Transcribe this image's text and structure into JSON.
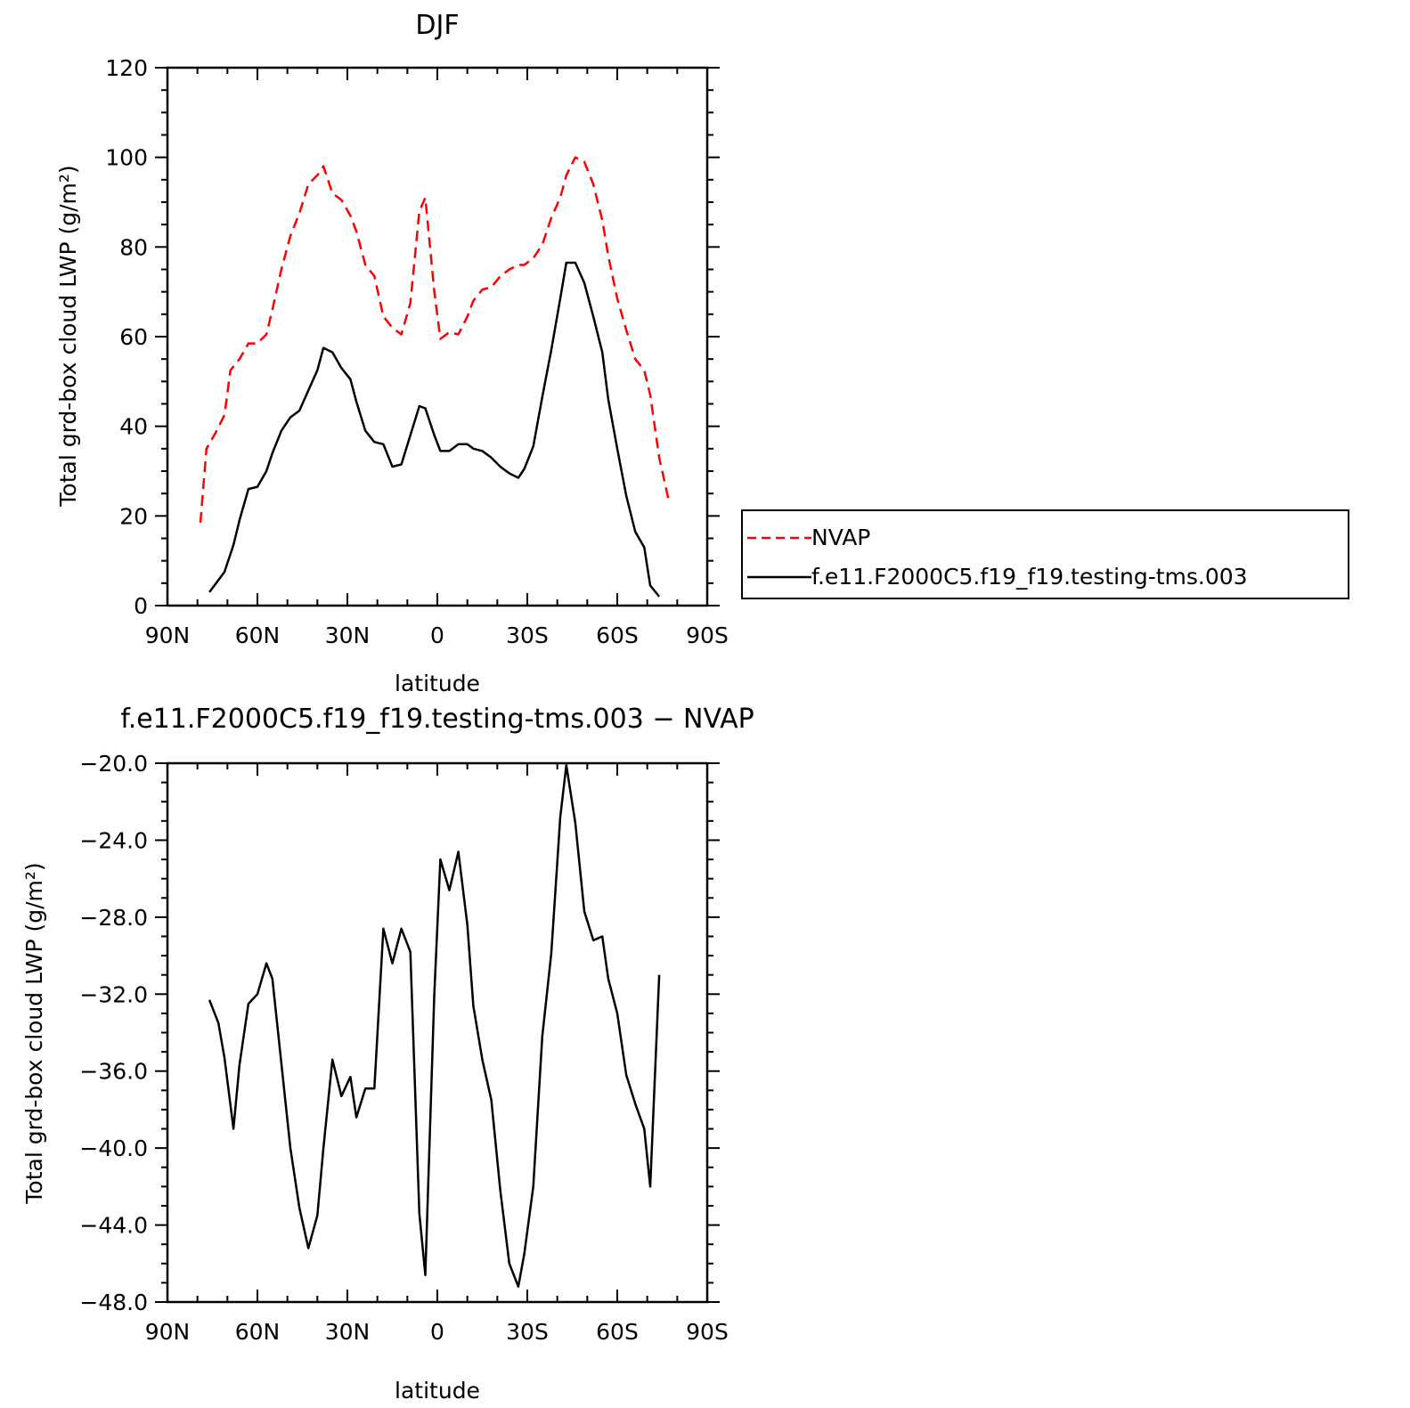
{
  "chart_data": [
    {
      "type": "line",
      "title": "DJF",
      "xlabel": "latitude",
      "ylabel": "Total grd-box cloud LWP (g/m²)",
      "xlim": [
        90,
        -90
      ],
      "ylim": [
        0,
        120
      ],
      "xticks": [
        {
          "value": 90,
          "label": "90N"
        },
        {
          "value": 60,
          "label": "60N"
        },
        {
          "value": 30,
          "label": "30N"
        },
        {
          "value": 0,
          "label": "0"
        },
        {
          "value": -30,
          "label": "30S"
        },
        {
          "value": -60,
          "label": "60S"
        },
        {
          "value": -90,
          "label": "90S"
        }
      ],
      "yticks": [
        {
          "value": 0,
          "label": "0"
        },
        {
          "value": 20,
          "label": "20"
        },
        {
          "value": 40,
          "label": "40"
        },
        {
          "value": 60,
          "label": "60"
        },
        {
          "value": 80,
          "label": "80"
        },
        {
          "value": 100,
          "label": "100"
        },
        {
          "value": 120,
          "label": "120"
        }
      ],
      "legend": {
        "position": "right"
      },
      "series": [
        {
          "name": "NVAP",
          "color": "#ff0000",
          "dash": "dashed",
          "x": [
            79,
            77,
            74,
            71,
            69,
            66,
            63,
            60,
            57,
            55,
            52,
            49,
            46,
            43,
            40,
            38,
            35,
            32,
            29,
            27,
            24,
            21,
            18,
            15,
            12,
            9,
            6,
            4,
            1,
            -1,
            -4,
            -7,
            -10,
            -12,
            -15,
            -18,
            -21,
            -24,
            -27,
            -29,
            -32,
            -35,
            -38,
            -41,
            -43,
            -46,
            -49,
            -52,
            -55,
            -57,
            -60,
            -63,
            -66,
            -69,
            -71,
            -74,
            -77
          ],
          "y": [
            18.5,
            35,
            38.5,
            42.5,
            52.5,
            55,
            58.5,
            58.5,
            60.5,
            66,
            75,
            82.5,
            87.5,
            94,
            96,
            98,
            92,
            90.5,
            87,
            83.5,
            76,
            73.5,
            64.5,
            62,
            60.5,
            67.5,
            88,
            91,
            70,
            59.5,
            61,
            60.5,
            64.5,
            68,
            70.5,
            71,
            73.5,
            75,
            76,
            76,
            77.5,
            80.5,
            86.5,
            91,
            96,
            100,
            99,
            94,
            86,
            78,
            68.5,
            61.5,
            55,
            52.5,
            47,
            33,
            24
          ]
        },
        {
          "name": "f.e11.F2000C5.f19_f19.testing-tms.003",
          "color": "#000000",
          "dash": "solid",
          "x": [
            76,
            71,
            68,
            66,
            63,
            60,
            57,
            55,
            52,
            49,
            46,
            43,
            40,
            38,
            35,
            32,
            29,
            27,
            24,
            21,
            18,
            15,
            12,
            9,
            6,
            4,
            1,
            -1,
            -4,
            -7,
            -10,
            -12,
            -15,
            -18,
            -21,
            -24,
            -27,
            -29,
            -32,
            -35,
            -38,
            -41,
            -43,
            -46,
            -49,
            -52,
            -55,
            -57,
            -60,
            -63,
            -66,
            -69,
            -71,
            -74
          ],
          "y": [
            3,
            7.5,
            13.5,
            19,
            26,
            26.5,
            30,
            34,
            39,
            42,
            43.5,
            48,
            52.5,
            57.5,
            56.5,
            53,
            50.5,
            45.5,
            39,
            36.5,
            36,
            31,
            31.5,
            38,
            44.5,
            44,
            38,
            34.5,
            34.5,
            36,
            36,
            35,
            34.5,
            33,
            31,
            29.5,
            28.5,
            30.5,
            35.5,
            46.5,
            57,
            68.5,
            76.5,
            76.5,
            72,
            64.5,
            56.5,
            46,
            35,
            24.5,
            16.5,
            13,
            4.5,
            2
          ]
        }
      ]
    },
    {
      "type": "line",
      "title": "f.e11.F2000C5.f19_f19.testing-tms.003 − NVAP",
      "xlabel": "latitude",
      "ylabel": "Total grd-box cloud LWP (g/m²)",
      "xlim": [
        90,
        -90
      ],
      "ylim": [
        -48,
        -20
      ],
      "xticks": [
        {
          "value": 90,
          "label": "90N"
        },
        {
          "value": 60,
          "label": "60N"
        },
        {
          "value": 30,
          "label": "30N"
        },
        {
          "value": 0,
          "label": "0"
        },
        {
          "value": -30,
          "label": "30S"
        },
        {
          "value": -60,
          "label": "60S"
        },
        {
          "value": -90,
          "label": "90S"
        }
      ],
      "yticks": [
        {
          "value": -48,
          "label": "−48.0"
        },
        {
          "value": -44,
          "label": "−44.0"
        },
        {
          "value": -40,
          "label": "−40.0"
        },
        {
          "value": -36,
          "label": "−36.0"
        },
        {
          "value": -32,
          "label": "−32.0"
        },
        {
          "value": -28,
          "label": "−28.0"
        },
        {
          "value": -24,
          "label": "−24.0"
        },
        {
          "value": -20,
          "label": "−20.0"
        }
      ],
      "series": [
        {
          "color": "#000000",
          "dash": "solid",
          "x": [
            76,
            73,
            71,
            68,
            66,
            63,
            60,
            57,
            55,
            52,
            49,
            46,
            43,
            40,
            38,
            35,
            32,
            29,
            27,
            24,
            21,
            18,
            15,
            12,
            9,
            6,
            4,
            1,
            -1,
            -4,
            -7,
            -10,
            -12,
            -15,
            -18,
            -21,
            -24,
            -27,
            -29,
            -32,
            -35,
            -38,
            -41,
            -43,
            -46,
            -49,
            -52,
            -55,
            -57,
            -60,
            -63,
            -66,
            -69,
            -71,
            -74
          ],
          "y": [
            -32.3,
            -33.5,
            -35.3,
            -39,
            -35.7,
            -32.5,
            -32,
            -30.4,
            -31.2,
            -35.6,
            -40,
            -43.1,
            -45.2,
            -43.5,
            -40,
            -35.4,
            -37.3,
            -36.3,
            -38.4,
            -36.9,
            -36.9,
            -28.6,
            -30.4,
            -28.6,
            -29.8,
            -43.4,
            -46.6,
            -32,
            -25,
            -26.6,
            -24.6,
            -28.4,
            -32.6,
            -35.4,
            -37.5,
            -42.2,
            -46,
            -47.2,
            -45.5,
            -42,
            -34.2,
            -29.9,
            -22.8,
            -20.1,
            -23.1,
            -27.7,
            -29.2,
            -29,
            -31.2,
            -33,
            -36.2,
            -37.7,
            -39,
            -42,
            -31
          ]
        }
      ]
    }
  ]
}
